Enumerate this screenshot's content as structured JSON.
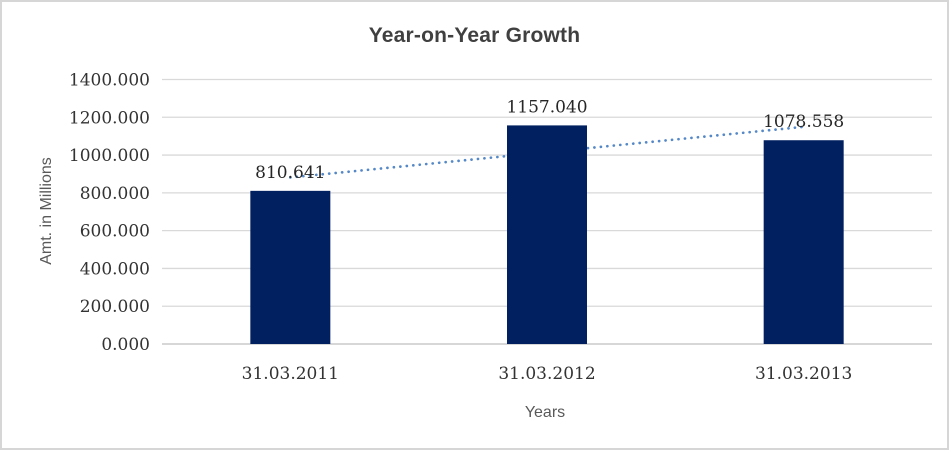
{
  "chart_data": {
    "type": "bar",
    "title": "Year-on-Year Growth",
    "categories": [
      "31.03.2011",
      "31.03.2012",
      "31.03.2013"
    ],
    "values": [
      810.641,
      1157.04,
      1078.558
    ],
    "data_labels": [
      "810.641",
      "1157.040",
      "1078.558"
    ],
    "xlabel": "Years",
    "ylabel": "Amt. in Millions",
    "ylim": [
      0,
      1400
    ],
    "y_tick_step": 200,
    "y_tick_labels": [
      "0.000",
      "200.000",
      "400.000",
      "600.000",
      "800.000",
      "1000.000",
      "1200.000",
      "1400.000"
    ],
    "grid": true,
    "legend": "none",
    "trendline": {
      "type": "linear",
      "style": "dotted"
    },
    "colors": {
      "bar": "#002060",
      "trendline": "#5588C7",
      "gridline": "#D9D9D9",
      "axis_line": "#BFBFBF",
      "title": "#404040",
      "tick_label": "#333333",
      "data_label": "#262626",
      "axis_title": "#595959",
      "frame_border": "#D6D6D6",
      "background": "#FFFFFF"
    }
  }
}
